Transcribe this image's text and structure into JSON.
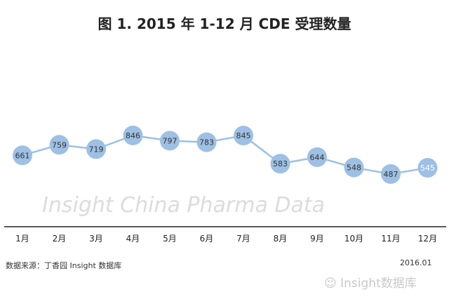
{
  "chart_data": {
    "type": "line",
    "title": "图 1. 2015 年 1-12 月 CDE 受理数量",
    "categories": [
      "1月",
      "2月",
      "3月",
      "4月",
      "5月",
      "6月",
      "7月",
      "8月",
      "9月",
      "10月",
      "11月",
      "12月"
    ],
    "values": [
      661,
      759,
      719,
      846,
      797,
      783,
      845,
      583,
      644,
      548,
      487,
      545
    ],
    "xlabel": "",
    "ylabel": "",
    "grid": false,
    "colors": {
      "marker": "#9dc0e4",
      "line": "#9dc0e4",
      "label": "#333333",
      "axis": "#222222"
    }
  },
  "watermark": "Insight China Pharma Data",
  "footer": {
    "source": "数据来源：丁香园 Insight 数据库",
    "date": "2016.01",
    "brand": "Insight数据库"
  }
}
